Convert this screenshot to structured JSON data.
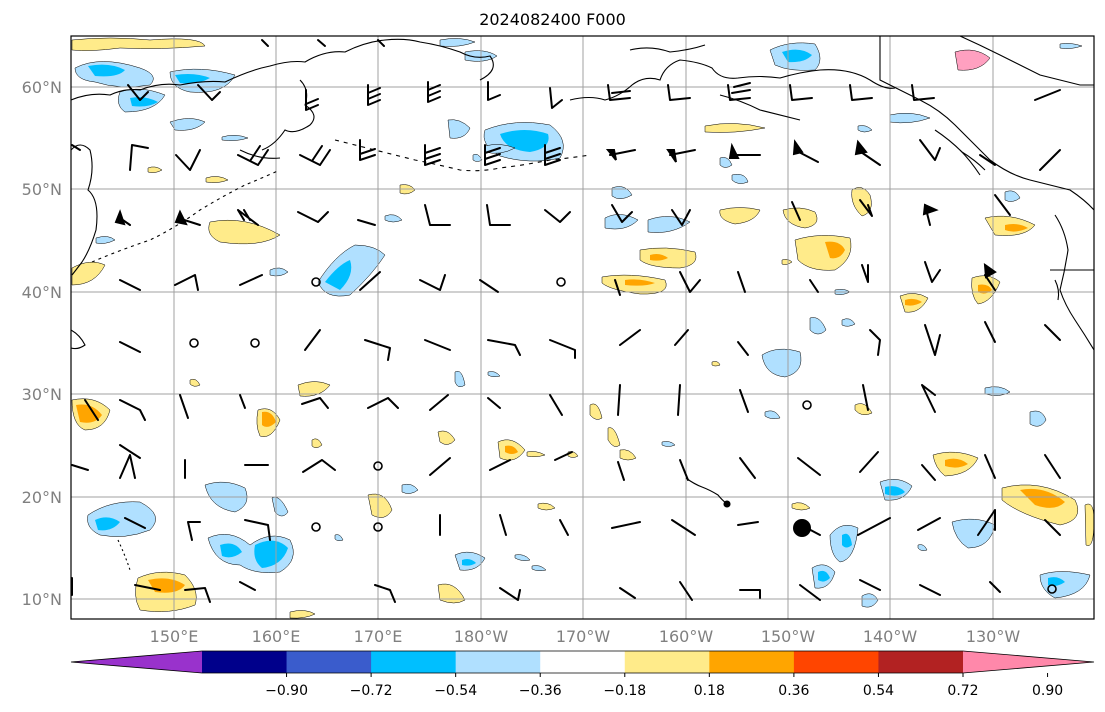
{
  "title": "2024082400 F000",
  "map": {
    "lon_range": [
      140,
      237.5
    ],
    "lat_range": [
      8,
      65
    ],
    "gridlines": true,
    "lat_labels": [
      "10°N",
      "20°N",
      "30°N",
      "40°N",
      "50°N",
      "60°N"
    ],
    "lat_values": [
      10,
      20,
      30,
      40,
      50,
      60
    ],
    "lon_labels": [
      "150°E",
      "160°E",
      "170°E",
      "180°W",
      "170°W",
      "160°W",
      "150°W",
      "140°W",
      "130°W"
    ],
    "lon_values": [
      150,
      160,
      170,
      180,
      190,
      200,
      210,
      220,
      230
    ]
  },
  "colorbar": {
    "colors": [
      "#9932cc",
      "#00008b",
      "#3a5ccc",
      "#00bfff",
      "#b0e0ff",
      "#ffffff",
      "#ffeb8a",
      "#ffa500",
      "#ff4500",
      "#b22222",
      "#ff88aa"
    ],
    "tick_labels": [
      "−0.90",
      "−0.72",
      "−0.54",
      "−0.36",
      "−0.18",
      "0.18",
      "0.36",
      "0.54",
      "0.72",
      "0.90"
    ]
  }
}
